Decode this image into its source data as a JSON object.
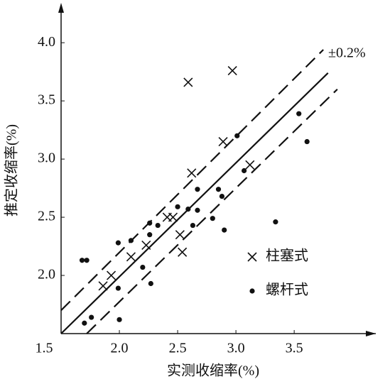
{
  "chart_data": {
    "type": "scatter",
    "x_label": "实测收缩率(%)",
    "y_label": "推定收缩率(%)",
    "annotation": "±0.2%",
    "xlim": [
      1.5,
      4.2
    ],
    "ylim": [
      1.5,
      4.3
    ],
    "xticks": [
      {
        "value": 1.5,
        "label": "1.5"
      },
      {
        "value": 2,
        "label": "2.0"
      },
      {
        "value": 2.5,
        "label": "2.5"
      },
      {
        "value": 3,
        "label": "3.0"
      },
      {
        "value": 3.5,
        "label": "3.5"
      }
    ],
    "yticks": [
      {
        "value": 2,
        "label": "2.0"
      },
      {
        "value": 2.5,
        "label": "2.5"
      },
      {
        "value": 3,
        "label": "3.0"
      },
      {
        "value": 3.5,
        "label": "3.5"
      },
      {
        "value": 4,
        "label": "4.0"
      }
    ],
    "lines": [
      {
        "style": "solid",
        "x": [
          1.5,
          3.79
        ],
        "y": [
          1.5,
          3.74
        ]
      },
      {
        "style": "dashed",
        "x": [
          1.5,
          3.75
        ],
        "y": [
          1.7,
          3.94
        ]
      },
      {
        "style": "dashed",
        "x": [
          1.72,
          3.87
        ],
        "y": [
          1.5,
          3.6
        ]
      }
    ],
    "series": [
      {
        "name": "柱塞式",
        "marker": "cross",
        "color": "#111111",
        "x": [
          2.59,
          2.97,
          2.89,
          2.62,
          3.12,
          2.46,
          2.41,
          2.52,
          2.54,
          2.23,
          2.1,
          1.93,
          1.86
        ],
        "values": [
          3.66,
          3.76,
          3.15,
          2.88,
          2.95,
          2.5,
          2.5,
          2.35,
          2.2,
          2.26,
          2.16,
          2.0,
          1.91
        ]
      },
      {
        "name": "螺杆式",
        "marker": "dot",
        "color": "#111111",
        "x": [
          1.68,
          1.72,
          1.99,
          2.1,
          2.26,
          2.33,
          2.26,
          2.5,
          2.59,
          2.67,
          2.67,
          2.63,
          2.8,
          2.85,
          2.88,
          2.9,
          3.01,
          3.07,
          3.34,
          3.54,
          3.61,
          2.2,
          2.27,
          1.99,
          2.0,
          1.7,
          1.76
        ],
        "values": [
          2.13,
          2.13,
          2.28,
          2.3,
          2.45,
          2.43,
          2.35,
          2.59,
          2.57,
          2.74,
          2.56,
          2.43,
          2.49,
          2.74,
          2.68,
          2.39,
          3.2,
          2.9,
          2.46,
          3.39,
          3.15,
          2.07,
          1.93,
          1.89,
          1.62,
          1.59,
          1.64
        ]
      }
    ]
  }
}
